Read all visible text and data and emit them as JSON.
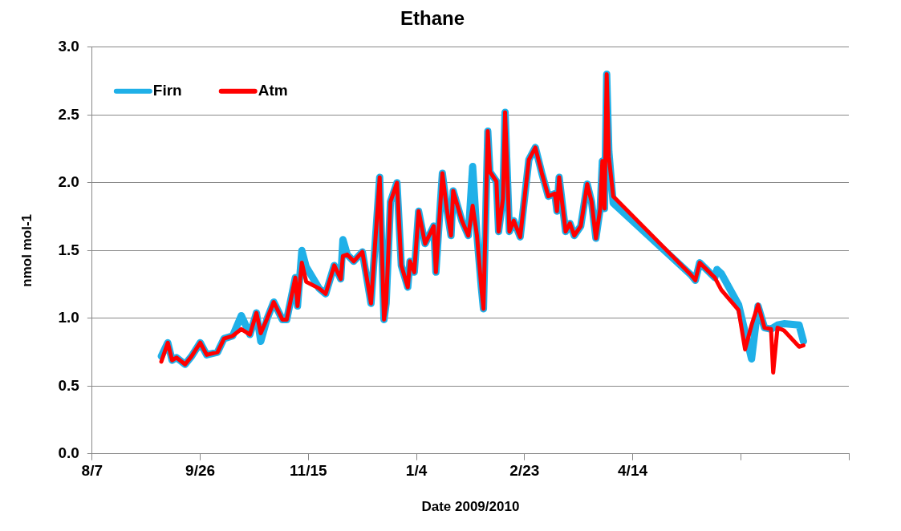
{
  "chart_data": {
    "type": "line",
    "title": "Ethane",
    "xlabel": "Date 2009/2010",
    "ylabel": "nmol mol-1",
    "x": [
      "2009-09-08",
      "2009-09-11",
      "2009-09-13",
      "2009-09-15",
      "2009-09-19",
      "2009-09-22",
      "2009-09-26",
      "2009-09-29",
      "2009-10-04",
      "2009-10-07",
      "2009-10-11",
      "2009-10-15",
      "2009-10-19",
      "2009-10-22",
      "2009-10-24",
      "2009-10-27",
      "2009-10-30",
      "2009-11-03",
      "2009-11-05",
      "2009-11-09",
      "2009-11-10",
      "2009-11-12",
      "2009-11-14",
      "2009-11-20",
      "2009-11-23",
      "2009-11-27",
      "2009-11-30",
      "2009-12-01",
      "2009-12-03",
      "2009-12-06",
      "2009-12-10",
      "2009-12-14",
      "2009-12-18",
      "2009-12-20",
      "2009-12-21",
      "2009-12-23",
      "2009-12-26",
      "2009-12-28",
      "2009-12-31",
      "2010-01-01",
      "2010-01-03",
      "2010-01-05",
      "2010-01-08",
      "2010-01-12",
      "2010-01-13",
      "2010-01-16",
      "2010-01-18",
      "2010-01-20",
      "2010-01-21",
      "2010-01-25",
      "2010-01-28",
      "2010-01-30",
      "2010-02-01",
      "2010-02-03",
      "2010-02-04",
      "2010-02-06",
      "2010-02-07",
      "2010-02-10",
      "2010-02-11",
      "2010-02-13",
      "2010-02-14",
      "2010-02-16",
      "2010-02-18",
      "2010-02-21",
      "2010-02-25",
      "2010-02-28",
      "2010-03-03",
      "2010-03-06",
      "2010-03-09",
      "2010-03-10",
      "2010-03-11",
      "2010-03-14",
      "2010-03-16",
      "2010-03-18",
      "2010-03-21",
      "2010-03-24",
      "2010-03-26",
      "2010-03-28",
      "2010-03-30",
      "2010-03-31",
      "2010-04-01",
      "2010-04-02",
      "2010-04-03",
      "2010-04-05",
      "2010-05-11",
      "2010-05-13",
      "2010-05-15",
      "2010-05-22",
      "2010-05-23",
      "2010-05-25",
      "2010-06-02",
      "2010-06-05",
      "2010-06-08",
      "2010-06-11",
      "2010-06-14",
      "2010-06-17",
      "2010-06-18",
      "2010-06-20",
      "2010-06-23",
      "2010-06-30",
      "2010-07-02"
    ],
    "series": [
      {
        "name": "Firn",
        "color": "#1fb0e8",
        "values": [
          0.72,
          0.82,
          0.69,
          0.71,
          0.66,
          0.72,
          0.82,
          0.73,
          0.75,
          0.85,
          0.87,
          1.02,
          0.88,
          1.04,
          0.83,
          1.0,
          1.12,
          0.99,
          0.99,
          1.3,
          1.09,
          1.5,
          1.38,
          1.22,
          1.18,
          1.39,
          1.29,
          1.58,
          1.47,
          1.42,
          1.49,
          1.11,
          2.04,
          0.99,
          1.11,
          1.86,
          2.0,
          1.39,
          1.23,
          1.42,
          1.34,
          1.79,
          1.55,
          1.68,
          1.34,
          2.07,
          1.81,
          1.61,
          1.94,
          1.72,
          1.61,
          2.12,
          1.61,
          1.23,
          1.07,
          2.38,
          2.08,
          2.01,
          1.64,
          1.88,
          2.52,
          1.64,
          1.72,
          1.6,
          2.17,
          2.26,
          2.07,
          1.9,
          1.92,
          1.79,
          2.04,
          1.64,
          1.7,
          1.61,
          1.68,
          1.99,
          1.86,
          1.59,
          1.81,
          2.16,
          1.81,
          2.8,
          2.23,
          1.85,
          1.32,
          1.28,
          1.41,
          1.3,
          1.36,
          1.33,
          1.1,
          0.9,
          0.7,
          1.09,
          0.93,
          0.92,
          0.93,
          0.95,
          0.96,
          0.95,
          0.83
        ]
      },
      {
        "name": "Atm",
        "color": "#ff0000",
        "values": [
          0.68,
          0.82,
          0.69,
          0.71,
          0.66,
          0.72,
          0.82,
          0.73,
          0.75,
          0.85,
          0.87,
          0.92,
          0.88,
          1.04,
          0.89,
          1.0,
          1.12,
          0.99,
          0.99,
          1.3,
          1.09,
          1.41,
          1.27,
          1.22,
          1.18,
          1.39,
          1.29,
          1.46,
          1.47,
          1.42,
          1.49,
          1.11,
          2.04,
          0.99,
          1.11,
          1.86,
          2.0,
          1.39,
          1.23,
          1.42,
          1.34,
          1.79,
          1.55,
          1.68,
          1.34,
          2.07,
          1.81,
          1.61,
          1.94,
          1.72,
          1.61,
          1.83,
          1.61,
          1.23,
          1.07,
          2.38,
          2.08,
          2.01,
          1.64,
          1.88,
          2.52,
          1.64,
          1.72,
          1.6,
          2.17,
          2.26,
          2.07,
          1.9,
          1.92,
          1.79,
          2.04,
          1.64,
          1.7,
          1.61,
          1.68,
          1.99,
          1.86,
          1.59,
          1.81,
          2.16,
          1.81,
          2.8,
          2.19,
          1.9,
          1.32,
          1.28,
          1.41,
          1.3,
          1.27,
          1.21,
          1.06,
          0.77,
          0.95,
          1.1,
          0.93,
          0.92,
          0.6,
          0.93,
          0.91,
          0.79,
          0.8
        ]
      }
    ],
    "xlim": [
      "2009-08-07",
      "2010-07-23"
    ],
    "xticks": [
      {
        "value": "2009-08-07",
        "label": "8/7"
      },
      {
        "value": "2009-09-26",
        "label": "9/26"
      },
      {
        "value": "2009-11-15",
        "label": "11/15"
      },
      {
        "value": "2010-01-04",
        "label": "1/4"
      },
      {
        "value": "2010-02-23",
        "label": "2/23"
      },
      {
        "value": "2010-04-14",
        "label": "4/14"
      },
      {
        "value": "2010-06-03",
        "label": null
      },
      {
        "value": "2010-07-23",
        "label": null
      }
    ],
    "ylim": [
      0,
      3
    ],
    "yticks": [
      {
        "value": 0,
        "label": "0.0"
      },
      {
        "value": 0.5,
        "label": "0.5"
      },
      {
        "value": 1,
        "label": "1.0"
      },
      {
        "value": 1.5,
        "label": "1.5"
      },
      {
        "value": 2,
        "label": "2.0"
      },
      {
        "value": 2.5,
        "label": "2.5"
      },
      {
        "value": 3,
        "label": "3.0"
      }
    ],
    "grid": "y",
    "legend": "top left",
    "line_style": "solid"
  }
}
